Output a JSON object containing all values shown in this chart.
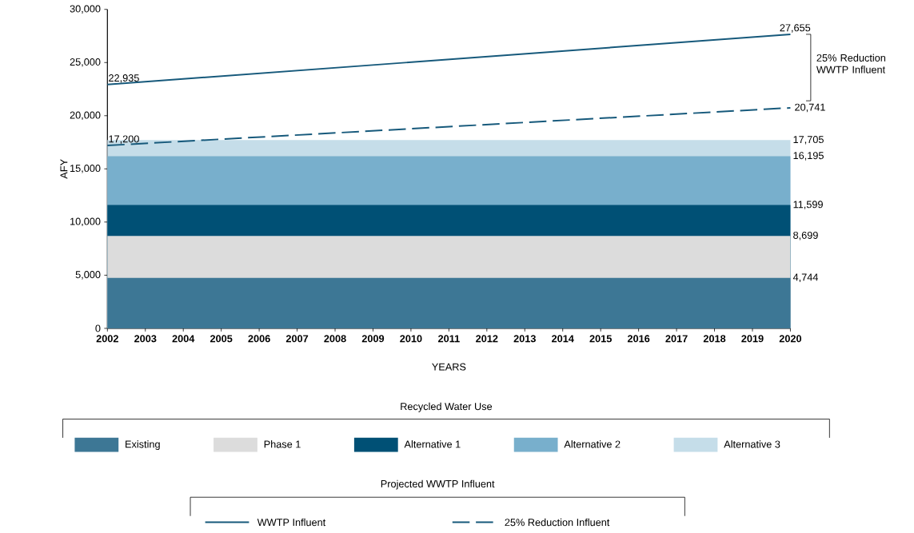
{
  "chart_data": {
    "type": "area",
    "xlabel": "YEARS",
    "ylabel": "AFY",
    "legend_title": "Recycled Water Use",
    "annotations": [
      "25% Reduction WWTP Influent",
      "Projected WWTP Influent"
    ],
    "x": [
      2002,
      2020
    ],
    "series": [
      {
        "name": "Existing",
        "color": "#3d7795",
        "values": [
          4744,
          4744
        ],
        "value_labels": [
          null,
          "4,744"
        ]
      },
      {
        "name": "Phase 1",
        "color": "#dcdcdc",
        "values": [
          8699,
          8699
        ],
        "value_labels": [
          null,
          "8,699"
        ]
      },
      {
        "name": "Alternative 1",
        "color": "#005075",
        "values": [
          11599,
          11599
        ],
        "value_labels": [
          null,
          "11,599"
        ]
      },
      {
        "name": "Alternative 2",
        "color": "#78afcc",
        "values": [
          16195,
          16195
        ],
        "value_labels": [
          null,
          "16,195"
        ]
      },
      {
        "name": "Alternative 3",
        "color": "#c5dde9",
        "values": [
          17705,
          17705
        ],
        "value_labels": [
          null,
          "17,705"
        ]
      },
      {
        "name": "WWTP Influent",
        "type": "line",
        "color": "#16597b",
        "values": [
          22935,
          27655
        ],
        "value_labels": [
          "22,935",
          "27,655"
        ]
      },
      {
        "name": "25% Reduction Influent",
        "type": "line",
        "line_style": "dashed",
        "color": "#16597b",
        "values": [
          17200,
          20741
        ],
        "value_labels": [
          "17,200",
          "20,741"
        ]
      }
    ],
    "xlim": [
      2002,
      2020
    ],
    "xticks": [
      2002,
      2003,
      2004,
      2005,
      2006,
      2007,
      2008,
      2009,
      2010,
      2011,
      2012,
      2013,
      2014,
      2015,
      2016,
      2017,
      2018,
      2019,
      2020
    ],
    "ylim": [
      0,
      30000
    ],
    "yticks": [
      {
        "value": 0,
        "label": "0"
      },
      {
        "value": 5000,
        "label": "5,000"
      },
      {
        "value": 10000,
        "label": "10,000"
      },
      {
        "value": 15000,
        "label": "15,000"
      },
      {
        "value": 20000,
        "label": "20,000"
      },
      {
        "value": 25000,
        "label": "25,000"
      },
      {
        "value": 30000,
        "label": "30,000"
      }
    ],
    "legend": "bottom"
  }
}
